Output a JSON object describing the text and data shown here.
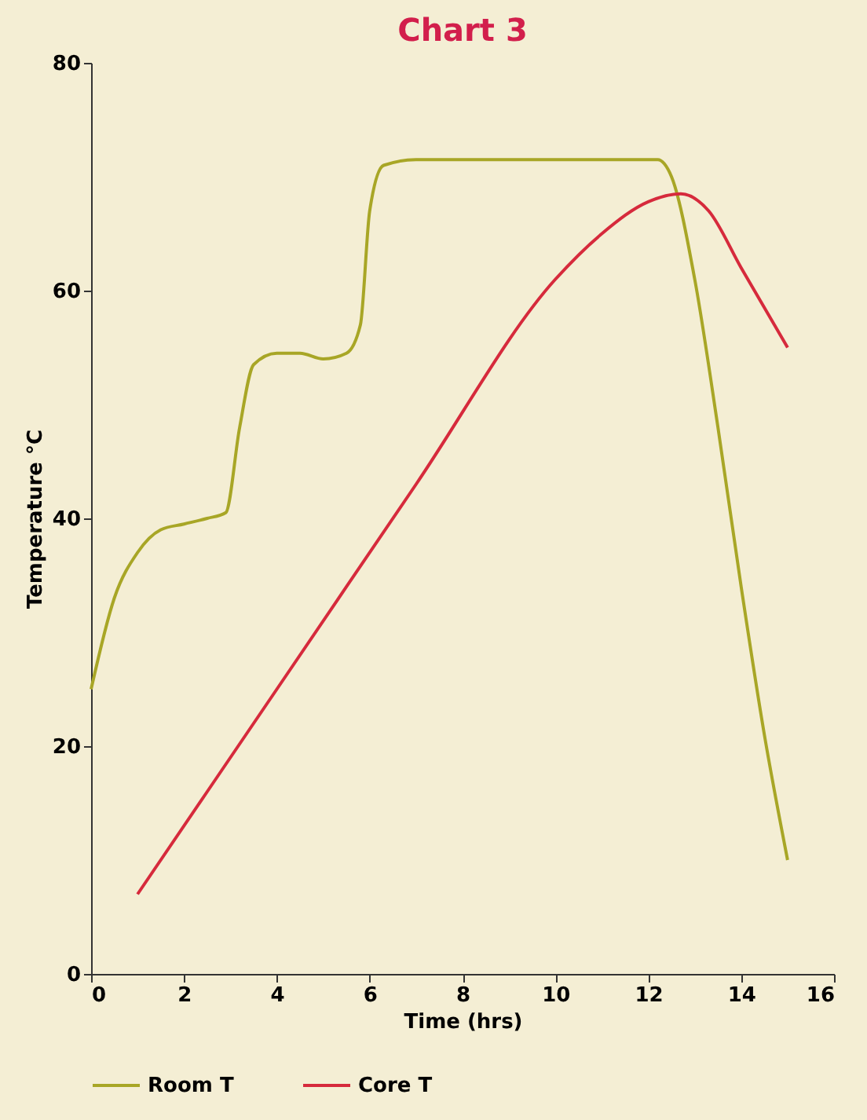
{
  "chart_data": {
    "type": "line",
    "title": "Chart 3",
    "xlabel": "Time (hrs)",
    "ylabel": "Temperature °C",
    "xlim": [
      0,
      16
    ],
    "xticks": [
      0,
      2,
      4,
      6,
      8,
      10,
      12,
      14,
      16
    ],
    "ylim": [
      0,
      80
    ],
    "yticks": [
      0,
      20,
      40,
      60,
      80
    ],
    "grid": false,
    "legend": "bottom",
    "marker": "none",
    "line_style": "solid",
    "series": [
      {
        "name": "Room T",
        "color": "#a8a626",
        "x": [
          0,
          0.5,
          1,
          1.5,
          2,
          2.5,
          2.9,
          3.2,
          3.5,
          4,
          4.5,
          5,
          5.5,
          5.8,
          6,
          6.3,
          7,
          9,
          11,
          12.2,
          12.5,
          13,
          13.5,
          14,
          14.5,
          15
        ],
        "values": [
          25,
          33,
          37,
          39,
          39.5,
          40,
          40.5,
          48,
          53.5,
          54.5,
          54.5,
          54,
          54.5,
          57,
          67,
          71,
          71.5,
          71.5,
          71.5,
          71.5,
          70,
          61,
          48,
          34,
          21,
          10
        ]
      },
      {
        "name": "Core T",
        "color": "#d62a3c",
        "x": [
          1,
          4,
          7,
          10,
          11,
          12,
          12.7,
          13.3,
          14,
          15
        ],
        "values": [
          7,
          25,
          43,
          61,
          65,
          67.8,
          68.5,
          67,
          62,
          55
        ]
      }
    ]
  }
}
